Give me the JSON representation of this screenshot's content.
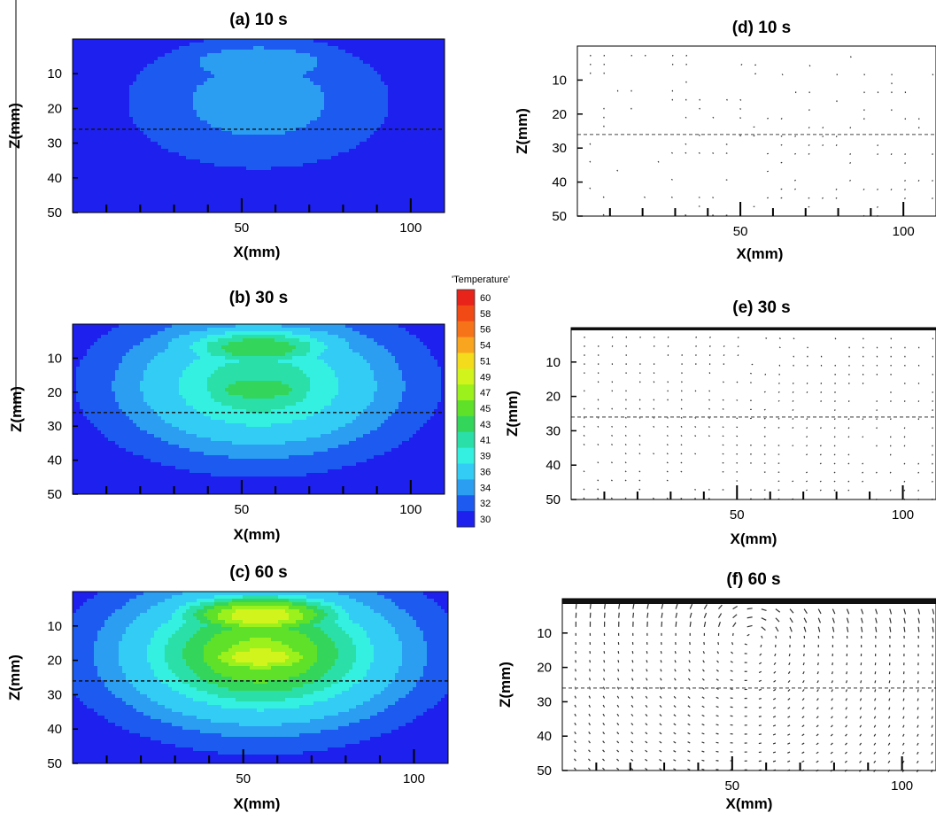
{
  "panels": [
    {
      "id": "a",
      "title": "(a) 10 s",
      "kind": "contour",
      "time_s": 10
    },
    {
      "id": "b",
      "title": "(b) 30 s",
      "kind": "contour",
      "time_s": 30
    },
    {
      "id": "c",
      "title": "(c) 60 s",
      "kind": "contour",
      "time_s": 60
    },
    {
      "id": "d",
      "title": "(d) 10 s",
      "kind": "vector",
      "time_s": 10
    },
    {
      "id": "e",
      "title": "(e) 30 s",
      "kind": "vector",
      "time_s": 30
    },
    {
      "id": "f",
      "title": "(f) 60 s",
      "kind": "vector",
      "time_s": 60
    }
  ],
  "chart_data": {
    "type": "heatmap",
    "xlabel": "X(mm)",
    "ylabel": "Z(mm)",
    "xlim": [
      0,
      110
    ],
    "ylim": [
      0,
      50
    ],
    "y_inverted": true,
    "xticks": [
      50,
      100
    ],
    "yticks": [
      10,
      20,
      30,
      40,
      50
    ],
    "reference_line_z_mm": 26,
    "colorbar": {
      "title": "'Temperature'",
      "levels": [
        60,
        58,
        56,
        54,
        51,
        49,
        47,
        45,
        43,
        41,
        39,
        36,
        34,
        32,
        30
      ],
      "colors": [
        "#e8231a",
        "#f24a15",
        "#f7731a",
        "#f9a51f",
        "#f4dc1c",
        "#d1f41c",
        "#9cf01c",
        "#5fe12a",
        "#33d65a",
        "#2bdfa8",
        "#33f0e0",
        "#33ccf5",
        "#2b9ef2",
        "#1c5af0",
        "#1e20ee"
      ]
    },
    "contour_fields": [
      {
        "panel": "a",
        "time_s": 10,
        "max_temperature": 36,
        "hot_spots": [
          {
            "x": 55,
            "z": 7
          },
          {
            "x": 55,
            "z": 19
          }
        ]
      },
      {
        "panel": "b",
        "time_s": 30,
        "max_temperature": 45,
        "hot_spots": [
          {
            "x": 55,
            "z": 7
          },
          {
            "x": 55,
            "z": 19
          }
        ]
      },
      {
        "panel": "c",
        "time_s": 60,
        "max_temperature": 51,
        "hot_spots": [
          {
            "x": 55,
            "z": 7
          },
          {
            "x": 55,
            "z": 19
          }
        ]
      }
    ],
    "vector_fields": [
      {
        "panel": "d",
        "time_s": 10,
        "description_level": "sparse"
      },
      {
        "panel": "e",
        "time_s": 30,
        "description_level": "moderate"
      },
      {
        "panel": "f",
        "time_s": 60,
        "description_level": "dense"
      }
    ]
  }
}
